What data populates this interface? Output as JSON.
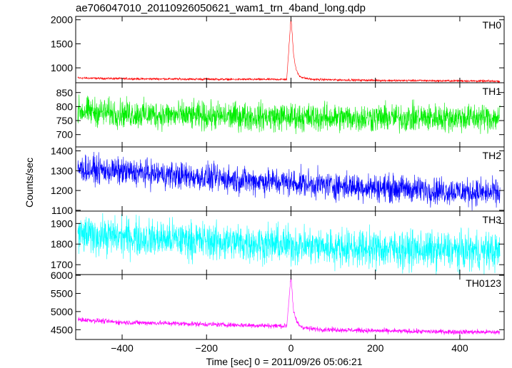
{
  "chart_data": {
    "type": "line",
    "title": "ae706047010_20110926050621_wam1_trn_4band_long.qdp",
    "xlabel": "Time [sec] 0 = 2011/09/26 05:06:21",
    "ylabel": "Counts/sec",
    "xlim": [
      -510,
      505
    ],
    "x_ticks": [
      -400,
      -200,
      0,
      200,
      400
    ],
    "x_tick_labels": [
      "−400",
      "−200",
      "0",
      "200",
      "400"
    ],
    "panels": [
      {
        "name": "TH0",
        "color": "#ff0000",
        "ylim": [
          690,
          2070
        ],
        "y_ticks": [
          1000,
          1500,
          2000
        ],
        "series": {
          "x": [
            -505,
            -450,
            -400,
            -350,
            -300,
            -250,
            -200,
            -150,
            -100,
            -50,
            -10,
            0,
            3,
            6,
            10,
            15,
            20,
            30,
            50,
            100,
            150,
            200,
            250,
            300,
            350,
            400,
            450,
            495
          ],
          "values": [
            790,
            780,
            775,
            770,
            770,
            765,
            765,
            760,
            760,
            760,
            760,
            2050,
            1700,
            1300,
            1050,
            900,
            830,
            790,
            760,
            750,
            745,
            740,
            735,
            735,
            730,
            730,
            725,
            720
          ]
        },
        "noise_amplitude": 25
      },
      {
        "name": "TH1",
        "color": "#00ee00",
        "ylim": [
          656,
          885
        ],
        "y_ticks": [
          700,
          750,
          800,
          850
        ],
        "series": {
          "x": [
            -505,
            -400,
            -300,
            -200,
            -100,
            0,
            100,
            200,
            300,
            400,
            495
          ],
          "values": [
            785,
            775,
            770,
            765,
            765,
            762,
            760,
            760,
            760,
            760,
            760
          ]
        },
        "noise_amplitude": 55
      },
      {
        "name": "TH2",
        "color": "#0000ff",
        "ylim": [
          1096,
          1420
        ],
        "y_ticks": [
          1100,
          1200,
          1300,
          1400
        ],
        "series": {
          "x": [
            -505,
            -400,
            -300,
            -200,
            -100,
            0,
            100,
            200,
            300,
            400,
            495
          ],
          "values": [
            1310,
            1295,
            1280,
            1265,
            1250,
            1240,
            1225,
            1215,
            1205,
            1195,
            1185
          ]
        },
        "noise_amplitude": 75
      },
      {
        "name": "TH3",
        "color": "#00ffff",
        "ylim": [
          1652,
          1960
        ],
        "y_ticks": [
          1700,
          1800,
          1900
        ],
        "series": {
          "x": [
            -505,
            -400,
            -300,
            -200,
            -100,
            0,
            100,
            200,
            300,
            400,
            495
          ],
          "values": [
            1845,
            1835,
            1825,
            1815,
            1805,
            1795,
            1785,
            1778,
            1772,
            1768,
            1765
          ]
        },
        "noise_amplitude": 100
      },
      {
        "name": "TH0123",
        "color": "#ff00ff",
        "ylim": [
          4230,
          6020
        ],
        "y_ticks": [
          4500,
          5000,
          5500,
          6000
        ],
        "series": {
          "x": [
            -505,
            -450,
            -400,
            -300,
            -200,
            -100,
            -10,
            0,
            3,
            6,
            10,
            15,
            20,
            30,
            50,
            100,
            200,
            300,
            400,
            495
          ],
          "values": [
            4780,
            4740,
            4700,
            4680,
            4650,
            4620,
            4600,
            6000,
            5500,
            5000,
            4850,
            4700,
            4620,
            4560,
            4520,
            4500,
            4470,
            4450,
            4440,
            4430
          ]
        },
        "noise_amplitude": 75
      }
    ],
    "grid": false
  }
}
